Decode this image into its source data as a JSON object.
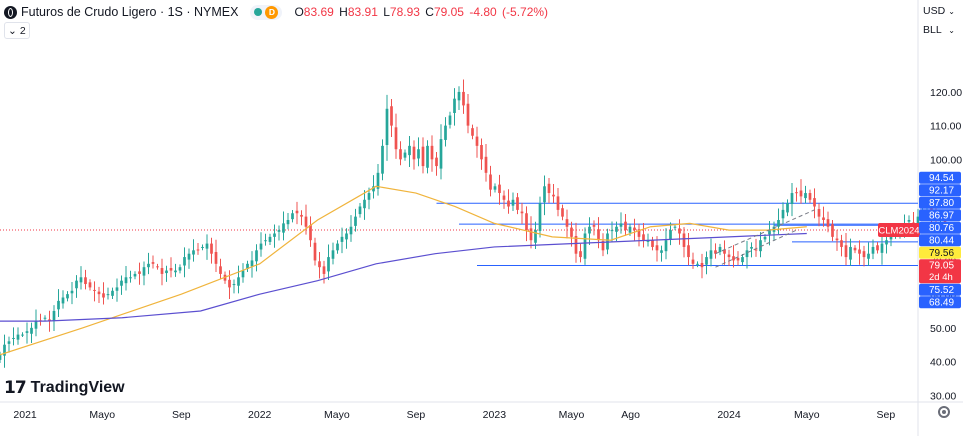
{
  "header": {
    "title": "Futuros de Crudo Ligero · 1S · NYMEX",
    "open_label": "O",
    "open": "83.69",
    "high_label": "H",
    "high": "83.91",
    "low_label": "L",
    "low": "78.93",
    "close_label": "C",
    "close": "79.05",
    "change": "-4.80",
    "change_pct": "(-5.72%)",
    "badge": "D",
    "indicator_count": "2"
  },
  "controls": {
    "currency": "USD",
    "unit": "BLL"
  },
  "brand": {
    "name": "TradingView"
  },
  "colors": {
    "up": "#26a69a",
    "down": "#ef5350",
    "ma_fast": "#f0b43c",
    "ma_slow": "#5b4fd0",
    "level": "#2962ff",
    "price_tag": "#f23645",
    "yellow_tag": "#ffeb3b"
  },
  "chart_data": {
    "type": "candlestick",
    "title": "Futuros de Crudo Ligero · 1S · NYMEX",
    "xlabel": "",
    "ylabel": "",
    "ylim": [
      28,
      136
    ],
    "y_ticks": [
      30,
      40,
      50,
      60,
      70,
      100,
      110,
      120
    ],
    "x_ticks": [
      {
        "label": "2021",
        "date": "2021-01-01"
      },
      {
        "label": "Mayo",
        "date": "2021-05-01"
      },
      {
        "label": "Sep",
        "date": "2021-09-01"
      },
      {
        "label": "2022",
        "date": "2022-01-01"
      },
      {
        "label": "Mayo",
        "date": "2022-05-01"
      },
      {
        "label": "Sep",
        "date": "2022-09-01"
      },
      {
        "label": "2023",
        "date": "2023-01-01"
      },
      {
        "label": "Mayo",
        "date": "2023-05-01"
      },
      {
        "label": "Ago",
        "date": "2023-08-01"
      },
      {
        "label": "2024",
        "date": "2024-01-01"
      },
      {
        "label": "Mayo",
        "date": "2024-05-01"
      },
      {
        "label": "Sep",
        "date": "2024-09-01"
      }
    ],
    "x_range": [
      "2020-11-23",
      "2024-10-21"
    ],
    "candles_start": "2020-11-23",
    "closes": [
      42,
      45,
      46,
      47,
      48,
      48,
      49,
      50,
      52,
      52,
      53,
      52,
      55,
      58,
      59,
      60,
      61,
      64,
      65,
      63,
      62,
      61,
      60,
      59,
      60,
      61,
      62,
      64,
      65,
      65,
      66,
      66,
      68,
      69,
      69,
      68,
      66,
      67,
      67,
      67,
      68,
      71,
      72,
      73,
      73,
      74,
      75,
      72,
      69,
      66,
      64,
      62,
      63,
      65,
      67,
      69,
      70,
      73,
      75,
      76,
      77,
      78,
      79,
      81,
      82,
      84,
      84,
      83,
      80,
      76,
      70,
      68,
      66,
      71,
      73,
      75,
      77,
      78,
      80,
      83,
      86,
      88,
      90,
      92,
      96,
      104,
      115,
      110,
      103,
      100,
      102,
      104,
      100,
      103,
      98,
      104,
      100,
      98,
      106,
      110,
      113,
      118,
      120,
      116,
      110,
      107,
      104,
      100,
      96,
      91,
      92,
      90,
      88,
      86,
      88,
      85,
      84,
      79,
      76,
      79,
      87,
      92,
      90,
      89,
      85,
      83,
      80,
      77,
      72,
      71,
      78,
      80,
      80,
      76,
      73,
      78,
      79,
      80,
      81,
      79,
      80,
      79,
      77,
      76,
      76,
      74,
      73,
      73,
      76,
      79,
      80,
      78,
      74,
      71,
      69,
      69,
      68,
      71,
      73,
      72,
      74,
      72,
      71,
      70,
      70,
      71,
      73,
      74,
      73,
      76,
      77,
      79,
      80,
      82,
      85,
      87,
      90,
      90,
      89,
      90,
      88,
      86,
      83,
      82,
      80,
      77,
      76,
      74,
      71,
      74,
      73,
      72,
      71,
      72,
      74,
      73,
      75,
      76,
      77,
      78,
      80,
      81,
      82,
      81,
      83,
      85,
      86,
      84,
      82,
      83,
      79.05
    ],
    "ohlc_last": {
      "open": 83.69,
      "high": 83.91,
      "low": 78.93,
      "close": 79.05
    },
    "series": [
      {
        "name": "MA fast",
        "color": "#f0b43c",
        "points": [
          [
            "2020-11-23",
            42
          ],
          [
            "2021-04-01",
            50
          ],
          [
            "2021-09-01",
            60
          ],
          [
            "2022-01-01",
            69
          ],
          [
            "2022-04-01",
            82
          ],
          [
            "2022-07-01",
            92
          ],
          [
            "2022-09-01",
            90
          ],
          [
            "2022-11-01",
            86
          ],
          [
            "2023-01-01",
            81
          ],
          [
            "2023-04-01",
            77
          ],
          [
            "2023-07-01",
            76
          ],
          [
            "2023-09-01",
            80
          ],
          [
            "2023-11-01",
            81
          ],
          [
            "2024-01-01",
            79
          ],
          [
            "2024-03-01",
            79
          ],
          [
            "2024-05-01",
            80
          ]
        ]
      },
      {
        "name": "MA slow",
        "color": "#5b4fd0",
        "points": [
          [
            "2020-11-23",
            52
          ],
          [
            "2021-02-01",
            52
          ],
          [
            "2021-06-01",
            53
          ],
          [
            "2021-10-01",
            55
          ],
          [
            "2022-01-01",
            60
          ],
          [
            "2022-04-01",
            64
          ],
          [
            "2022-07-01",
            69
          ],
          [
            "2022-10-01",
            72
          ],
          [
            "2023-01-01",
            74
          ],
          [
            "2023-05-01",
            75
          ],
          [
            "2023-09-01",
            76
          ],
          [
            "2024-01-01",
            77
          ],
          [
            "2024-05-01",
            78
          ]
        ]
      }
    ],
    "levels": [
      {
        "value": 86.97,
        "from": "2022-10-03",
        "to": "2024-10-21"
      },
      {
        "value": 80.76,
        "from": "2022-11-07",
        "to": "2024-10-21"
      },
      {
        "value": 80.44,
        "from": "2024-03-11",
        "to": "2024-10-21"
      },
      {
        "value": 75.52,
        "from": "2024-04-08",
        "to": "2024-10-21"
      },
      {
        "value": 68.49,
        "from": "2022-12-05",
        "to": "2024-10-21"
      }
    ],
    "trend_channel": [
      {
        "from": [
          "2023-12-11",
          68
        ],
        "to": [
          "2024-04-15",
          79
        ]
      },
      {
        "from": [
          "2023-12-11",
          72
        ],
        "to": [
          "2024-05-13",
          85
        ]
      }
    ],
    "price_labels": [
      {
        "text": "94.54",
        "value": 94.54,
        "color": "#2962ff",
        "text_color": "#ffffff"
      },
      {
        "text": "92.17",
        "value": 92.17,
        "color": "#2962ff",
        "text_color": "#ffffff"
      },
      {
        "text": "87.80",
        "value": 87.8,
        "color": "#2962ff",
        "text_color": "#ffffff"
      },
      {
        "text": "86.97",
        "value": 86.97,
        "color": "#2962ff",
        "text_color": "#ffffff"
      },
      {
        "text": "80.76",
        "value": 80.76,
        "color": "#2962ff",
        "text_color": "#ffffff"
      },
      {
        "text": "80.44",
        "value": 80.44,
        "color": "#2962ff",
        "text_color": "#ffffff"
      },
      {
        "text": "79.56",
        "value": 79.56,
        "color": "#ffeb3b",
        "text_color": "#131722"
      },
      {
        "text": "79.05",
        "value": 79.05,
        "color": "#f23645",
        "text_color": "#ffffff",
        "sub": "2d 4h"
      },
      {
        "text": "75.52",
        "value": 75.52,
        "color": "#2962ff",
        "text_color": "#ffffff"
      },
      {
        "text": "68.49",
        "value": 68.49,
        "color": "#2962ff",
        "text_color": "#ffffff"
      }
    ],
    "symbol_tag": "CLM2024",
    "grid": false
  }
}
